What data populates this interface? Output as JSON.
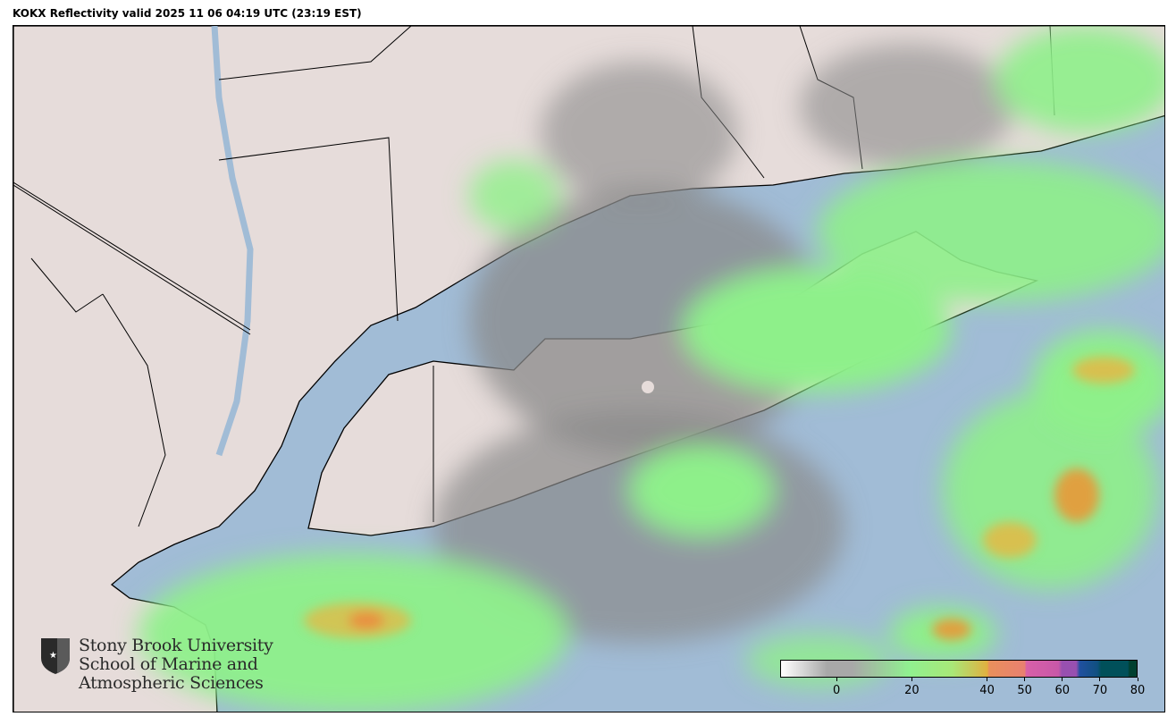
{
  "title": "KOKX Reflectivity valid 2025 11 06 04:19 UTC (23:19 EST)",
  "map": {
    "radar_site": "KOKX",
    "colors": {
      "land": "#e6dcda",
      "water": "#a1bcd6",
      "echo_light": "#8ef08a",
      "echo_gray": "#8a8a8a",
      "echo_yellow": "#d8c050",
      "echo_orange": "#e89040"
    }
  },
  "colorbar": {
    "range": [
      -15,
      80
    ],
    "ticks": [
      {
        "value": 0,
        "label": "0"
      },
      {
        "value": 20,
        "label": "20"
      },
      {
        "value": 40,
        "label": "40"
      },
      {
        "value": 50,
        "label": "50"
      },
      {
        "value": 60,
        "label": "60"
      },
      {
        "value": 70,
        "label": "70"
      },
      {
        "value": 80,
        "label": "80"
      }
    ]
  },
  "logo": {
    "line1": "Stony Brook University",
    "line2": "School of Marine and",
    "line3": "Atmospheric Sciences"
  }
}
